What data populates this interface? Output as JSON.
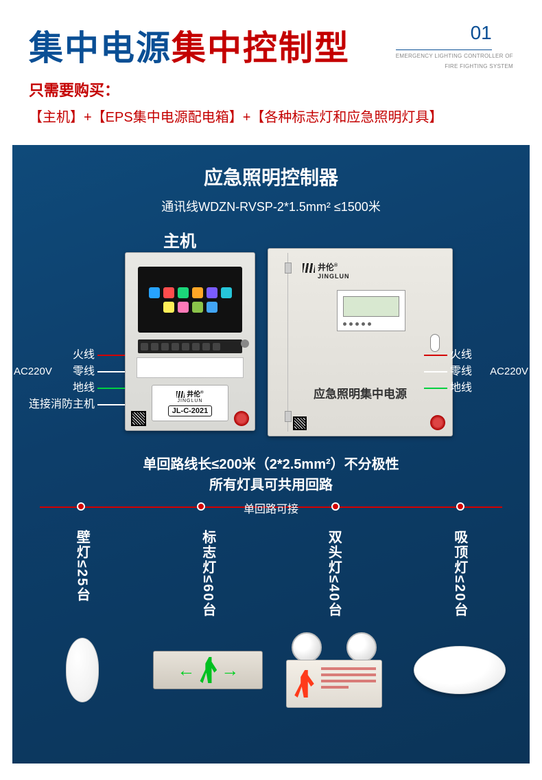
{
  "header": {
    "title_blue": "集中电源",
    "title_red": "集中控制型",
    "page_num": "01",
    "page_sub1": "EMERGENCY LIGHTING CONTROLLER OF",
    "page_sub2": "FIRE FIGHTING SYSTEM",
    "buy_label": "只需要购买：",
    "components": "【主机】+【EPS集中电源配电箱】+【各种标志灯和应急照明灯具】"
  },
  "diagram": {
    "ctrl_title": "应急照明控制器",
    "ctrl_sub": "通讯线WDZN-RVSP-2*1.5mm²  ≤1500米",
    "host_label": "主机",
    "host_panel": {
      "brand_cn": "井伦",
      "brand_en": "JINGLUN",
      "model": "JL-C-2021",
      "app_colors": [
        "#27a3ff",
        "#ff4d4d",
        "#1bd67a",
        "#ffa726",
        "#7a5cff",
        "#26c6da",
        "#ffee58",
        "#ff7ab8",
        "#8bc34a",
        "#42a5f5"
      ]
    },
    "power_panel": {
      "brand_cn": "井伦",
      "brand_en": "JINGLUN",
      "caption": "应急照明集中电源"
    },
    "wires_left": {
      "ac": "AC220V",
      "huo": "火线",
      "ling": "零线",
      "di": "地线",
      "fire_host": "连接消防主机",
      "colors": {
        "huo": "#d40000",
        "ling": "#ffffff",
        "di": "#00d040",
        "fire": "#ffffff"
      }
    },
    "wires_right": {
      "ac": "AC220V",
      "huo": "火线",
      "ling": "零线",
      "di": "地线",
      "colors": {
        "huo": "#d40000",
        "ling": "#ffffff",
        "di": "#00d040"
      }
    },
    "loop_note": "单回路线长≤200米（2*2.5mm²）不分极性",
    "loop_note2": "所有灯具可共用回路",
    "divider": {
      "label": "单回路可接",
      "color": "#d40000",
      "dot_positions_pct": [
        8,
        34,
        63,
        90
      ]
    },
    "products": [
      {
        "vlabel": "壁灯≤25台",
        "kind": "wall"
      },
      {
        "vlabel": "标志灯≤60台",
        "kind": "exit"
      },
      {
        "vlabel": "双头灯≤40台",
        "kind": "twin"
      },
      {
        "vlabel": "吸顶灯≤20台",
        "kind": "ceiling"
      }
    ]
  },
  "colors": {
    "brand_blue": "#0a4f95",
    "brand_red": "#c40000",
    "diagram_bg_from": "#0f4a7a",
    "diagram_bg_to": "#0b3458"
  }
}
